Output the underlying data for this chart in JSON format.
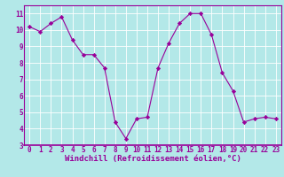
{
  "x": [
    0,
    1,
    2,
    3,
    4,
    5,
    6,
    7,
    8,
    9,
    10,
    11,
    12,
    13,
    14,
    15,
    16,
    17,
    18,
    19,
    20,
    21,
    22,
    23
  ],
  "y": [
    10.2,
    9.9,
    10.4,
    10.8,
    9.4,
    8.5,
    8.5,
    7.7,
    4.4,
    3.4,
    4.6,
    4.7,
    7.7,
    9.2,
    10.4,
    11.0,
    11.0,
    9.7,
    7.4,
    6.3,
    4.4,
    4.6,
    4.7,
    4.6
  ],
  "xlim": [
    -0.5,
    23.5
  ],
  "ylim": [
    3,
    11.5
  ],
  "yticks": [
    3,
    4,
    5,
    6,
    7,
    8,
    9,
    10,
    11
  ],
  "xticks": [
    0,
    1,
    2,
    3,
    4,
    5,
    6,
    7,
    8,
    9,
    10,
    11,
    12,
    13,
    14,
    15,
    16,
    17,
    18,
    19,
    20,
    21,
    22,
    23
  ],
  "xlabel": "Windchill (Refroidissement éolien,°C)",
  "line_color": "#990099",
  "marker": "D",
  "marker_size": 2.2,
  "bg_color": "#b3e8e8",
  "grid_color": "#ffffff",
  "tick_label_fontsize": 5.5,
  "xlabel_fontsize": 6.5,
  "axis_color": "#990099"
}
